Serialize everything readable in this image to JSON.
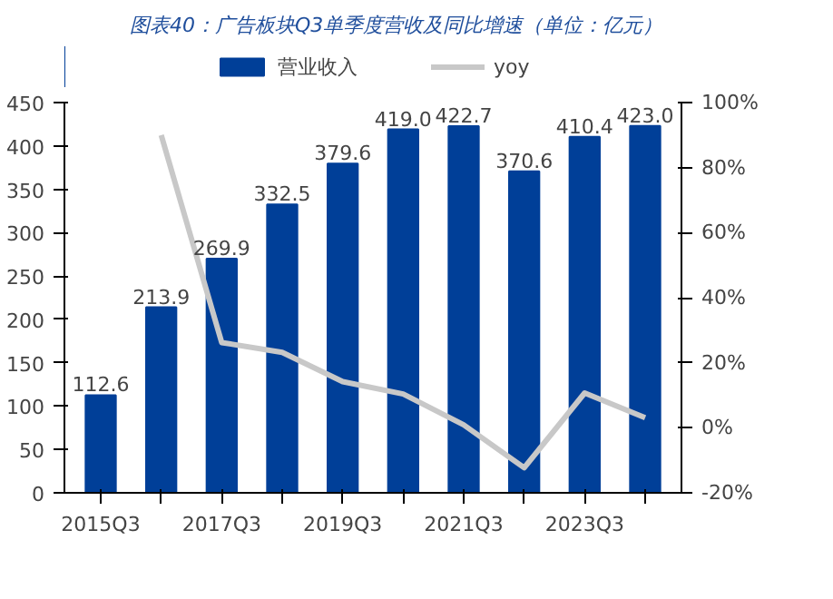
{
  "chart_data": {
    "type": "bar",
    "title": "图表40：广告板块Q3单季度营收及同比增速（单位：亿元）",
    "categories": [
      "2015Q3",
      null,
      "2017Q3",
      null,
      "2019Q3",
      null,
      "2021Q3",
      null,
      "2023Q3",
      null
    ],
    "series": [
      {
        "name": "营业收入",
        "color": "#003f98",
        "values": [
          112.6,
          213.9,
          269.9,
          332.5,
          379.6,
          419.0,
          422.7,
          370.6,
          410.4,
          423.0
        ],
        "value_labels": [
          "112.6",
          "213.9",
          "269.9",
          "332.5",
          "379.6",
          "419.0",
          "422.7",
          "370.6",
          "410.4",
          "423.0"
        ]
      },
      {
        "name": "yoy",
        "type": "line",
        "axis": "y2",
        "color": "#c8c8c8",
        "values": [
          null,
          90.0,
          26.2,
          23.2,
          14.2,
          10.4,
          0.9,
          -12.3,
          10.7,
          3.1
        ]
      }
    ],
    "ylim": [
      0,
      450
    ],
    "yticks": [
      0,
      50,
      100,
      150,
      200,
      250,
      300,
      350,
      400,
      450
    ],
    "y2lim": [
      -20,
      100
    ],
    "y2ticks": [
      {
        "value": -20,
        "label": "-20%"
      },
      {
        "value": 0,
        "label": "0%"
      },
      {
        "value": 20,
        "label": "20%"
      },
      {
        "value": 40,
        "label": "40%"
      },
      {
        "value": 60,
        "label": "60%"
      },
      {
        "value": 80,
        "label": "80%"
      },
      {
        "value": 100,
        "label": "100%"
      }
    ],
    "grid": false,
    "legend": "top"
  }
}
